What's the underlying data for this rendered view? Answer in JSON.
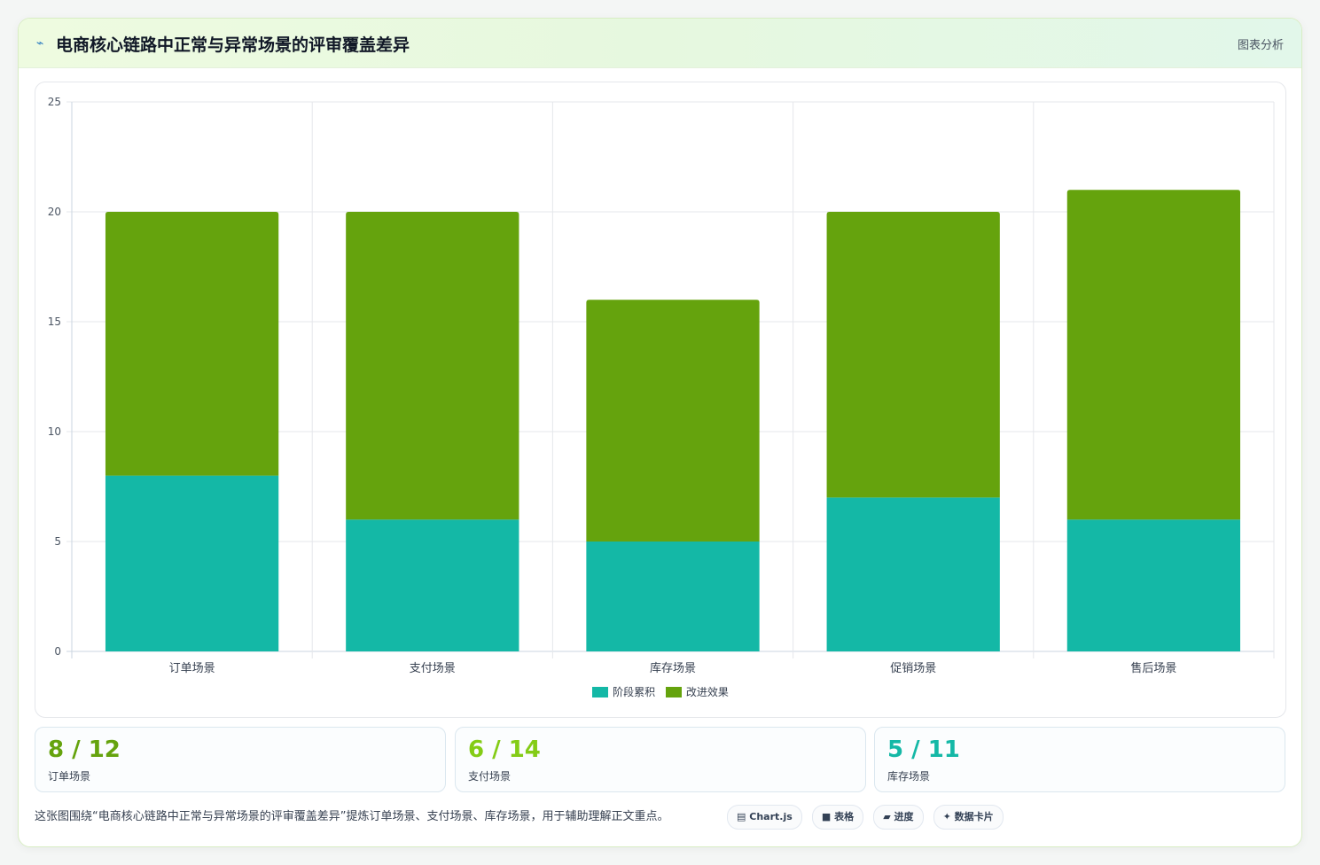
{
  "header": {
    "icon": "chart-line-icon",
    "icon_glyph": "⌁",
    "title": "电商核心链路中正常与异常场景的评审覆盖差异",
    "tag": "图表分析"
  },
  "colors": {
    "series1": "#14b8a6",
    "series2": "#65a30d",
    "stat1": "#65a30d",
    "stat2": "#84cc16",
    "stat3": "#14b8a6"
  },
  "chart_data": {
    "type": "bar",
    "stacked": true,
    "categories": [
      "订单场景",
      "支付场景",
      "库存场景",
      "促销场景",
      "售后场景"
    ],
    "series": [
      {
        "name": "阶段累积",
        "values": [
          8,
          6,
          5,
          7,
          6
        ]
      },
      {
        "name": "改进效果",
        "values": [
          12,
          14,
          11,
          13,
          15
        ]
      }
    ],
    "ylim": [
      0,
      25
    ],
    "yticks": [
      0,
      5,
      10,
      15,
      20,
      25
    ],
    "grid": true,
    "legend": "bottom"
  },
  "stats": [
    {
      "value": "8 / 12",
      "label": "订单场景"
    },
    {
      "value": "6 / 14",
      "label": "支付场景"
    },
    {
      "value": "5 / 11",
      "label": "库存场景"
    }
  ],
  "caption": "这张图围绕“电商核心链路中正常与异常场景的评审覆盖差异”提炼订单场景、支付场景、库存场景，用于辅助理解正文重点。",
  "chips": [
    {
      "icon": "chart-icon",
      "glyph": "▤",
      "label": "Chart.js"
    },
    {
      "icon": "table-icon",
      "glyph": "■",
      "label": "表格"
    },
    {
      "icon": "progress-icon",
      "glyph": "▰",
      "label": "进度"
    },
    {
      "icon": "sparkle-icon",
      "glyph": "✦",
      "label": "数据卡片"
    }
  ]
}
